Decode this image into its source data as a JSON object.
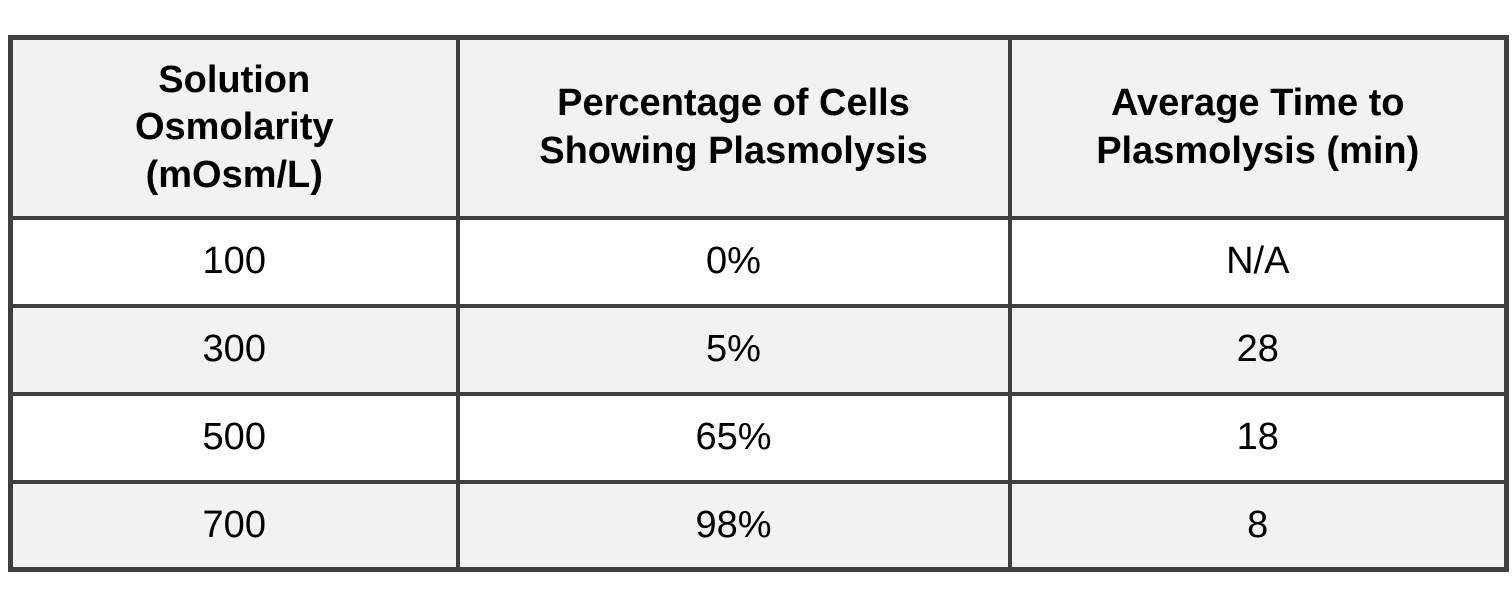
{
  "colors": {
    "border": "#3f3f3f",
    "header_bg": "#f2f2f2",
    "row_bg": "#ffffff",
    "row_alt_bg": "#f2f2f2",
    "text": "#000000",
    "page_bg": "#ffffff"
  },
  "table": {
    "headers": [
      "Solution Osmolarity (mOsm/L)",
      "Percentage of Cells Showing Plasmolysis",
      "Average Time to Plasmolysis (min)"
    ],
    "rows": [
      {
        "osmolarity": "100",
        "percent_plasmolysis": "0%",
        "avg_time_min": "N/A"
      },
      {
        "osmolarity": "300",
        "percent_plasmolysis": "5%",
        "avg_time_min": "28"
      },
      {
        "osmolarity": "500",
        "percent_plasmolysis": "65%",
        "avg_time_min": "18"
      },
      {
        "osmolarity": "700",
        "percent_plasmolysis": "98%",
        "avg_time_min": "8"
      }
    ]
  }
}
